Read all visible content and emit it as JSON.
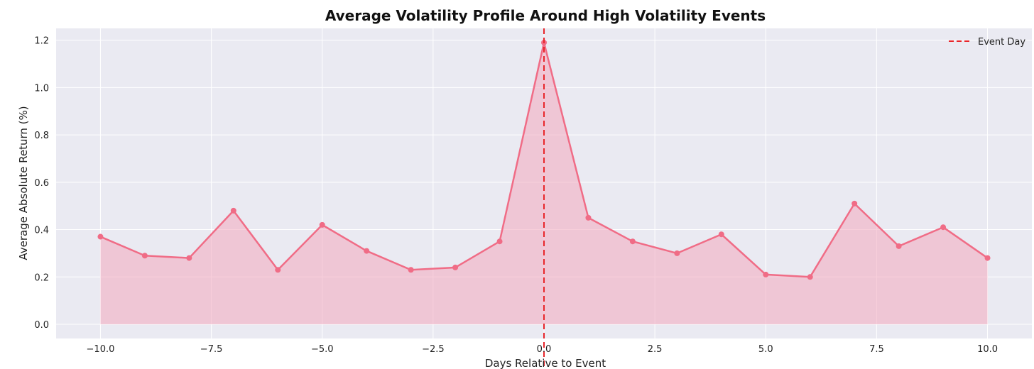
{
  "chart_data": {
    "type": "area",
    "title": "Average Volatility Profile Around High Volatility Events",
    "xlabel": "Days Relative to Event",
    "ylabel": "Average Absolute Return (%)",
    "xlim": [
      -11,
      11
    ],
    "ylim": [
      -0.06,
      1.25
    ],
    "xticks": [
      -10.0,
      -7.5,
      -5.0,
      -2.5,
      0.0,
      2.5,
      5.0,
      7.5,
      10.0
    ],
    "xtick_labels": [
      "−10.0",
      "−7.5",
      "−5.0",
      "−2.5",
      "0.0",
      "2.5",
      "5.0",
      "7.5",
      "10.0"
    ],
    "yticks": [
      0.0,
      0.2,
      0.4,
      0.6,
      0.8,
      1.0,
      1.2
    ],
    "ytick_labels": [
      "0.0",
      "0.2",
      "0.4",
      "0.6",
      "0.8",
      "1.0",
      "1.2"
    ],
    "grid": true,
    "legend_position": "top-right",
    "legend": [
      {
        "label": "Event Day",
        "style": "dashed",
        "color": "#e8262b"
      }
    ],
    "event_line_x": 0,
    "series": [
      {
        "color": "#f06c86",
        "fill_color": "#f2a8bd",
        "x": [
          -10,
          -9,
          -8,
          -7,
          -6,
          -5,
          -4,
          -3,
          -2,
          -1,
          0,
          1,
          2,
          3,
          4,
          5,
          6,
          7,
          8,
          9,
          10
        ],
        "values": [
          0.37,
          0.29,
          0.28,
          0.48,
          0.23,
          0.42,
          0.31,
          0.23,
          0.24,
          0.35,
          1.19,
          0.45,
          0.35,
          0.3,
          0.38,
          0.21,
          0.2,
          0.51,
          0.33,
          0.41,
          0.28
        ]
      }
    ]
  },
  "colors": {
    "plot_background": "#eaeaf2",
    "grid": "#ffffff",
    "line": "#f06c86",
    "fill": "#f2a8bd",
    "event_line": "#e8262b"
  }
}
